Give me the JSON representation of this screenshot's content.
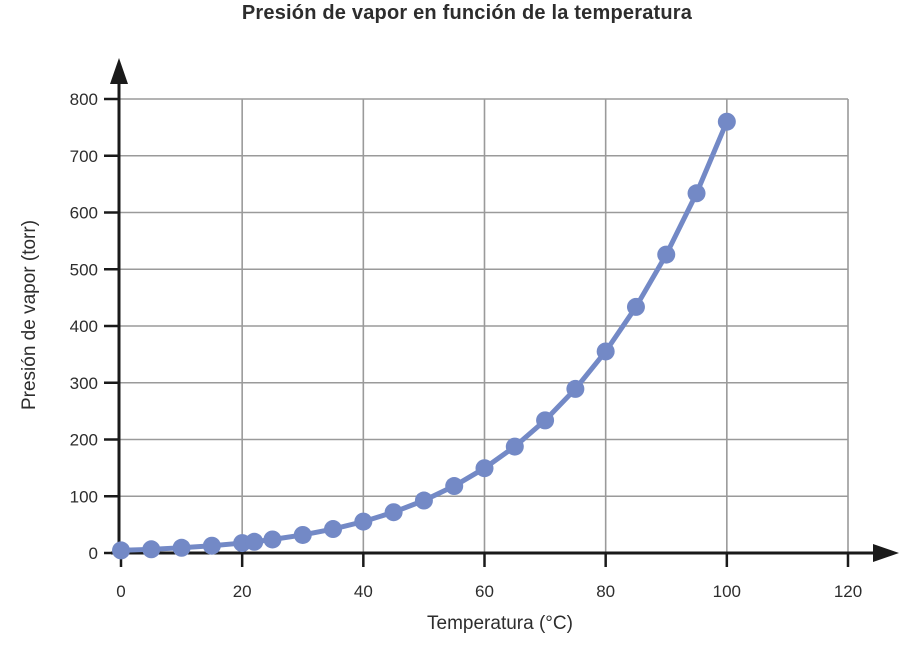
{
  "figure": {
    "title": "Presión de vapor en función de la temperatura",
    "x_axis_label": "Temperatura (°C)",
    "y_axis_label": "Presión de vapor (torr)"
  },
  "chart_data": {
    "type": "line",
    "title": "Presión de vapor en función de la temperatura",
    "xlabel": "Temperatura (°C)",
    "ylabel": "Presión de vapor (torr)",
    "xlim": [
      0,
      120
    ],
    "ylim": [
      0,
      800
    ],
    "x_ticks": [
      0,
      20,
      40,
      60,
      80,
      100,
      120
    ],
    "y_ticks": [
      0,
      100,
      200,
      300,
      400,
      500,
      600,
      700,
      800
    ],
    "grid": true,
    "legend_position": "none",
    "marker": "circle",
    "series": [
      {
        "x": [
          0,
          5,
          10,
          15,
          20,
          22,
          25,
          30,
          35,
          40,
          45,
          50,
          55,
          60,
          65,
          70,
          75,
          80,
          85,
          90,
          95,
          100
        ],
        "y": [
          4.6,
          6.5,
          9.2,
          12.8,
          17.5,
          19.8,
          23.8,
          31.8,
          42.2,
          55.3,
          71.9,
          92.5,
          118.0,
          149.4,
          187.5,
          233.7,
          289.1,
          355.1,
          433.6,
          525.8,
          633.9,
          760.0
        ]
      }
    ],
    "colors": {
      "line": "#7389c6",
      "marker": "#7389c6",
      "grid": "#9a9a9a",
      "axis": "#1a1a1a",
      "text": "#2d2d2d"
    }
  }
}
